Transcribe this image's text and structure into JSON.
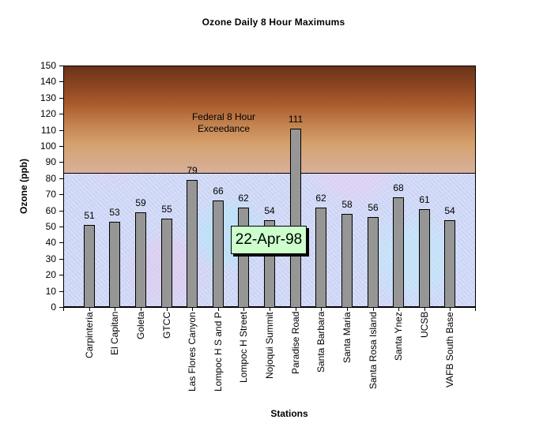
{
  "chart_data": {
    "type": "bar",
    "title": "Ozone Daily 8 Hour Maximums",
    "xlabel": "Stations",
    "ylabel": "Ozone (ppb)",
    "ylim": [
      0,
      150
    ],
    "yticks": [
      0,
      10,
      20,
      30,
      40,
      50,
      60,
      70,
      80,
      90,
      100,
      110,
      120,
      130,
      140,
      150
    ],
    "categories": [
      "Carpinteria",
      "El Capitan",
      "Goleta",
      "GTCC",
      "Las Flores Canyon",
      "Lompoc H S and P",
      "Lompoc H Street",
      "Nojoqui Summit",
      "Paradise Road",
      "Santa Barbara",
      "Santa Maria",
      "Santa Rosa Island",
      "Santa Ynez",
      "UCSB",
      "VAFB South Base"
    ],
    "values": [
      51,
      53,
      59,
      55,
      79,
      66,
      62,
      54,
      111,
      62,
      58,
      56,
      68,
      61,
      54
    ],
    "data_labels": true,
    "grid": false,
    "annotations": [
      {
        "type": "band",
        "label": "Federal 8 Hour Exceedance",
        "from": 84,
        "to": 150
      },
      {
        "type": "textbox",
        "label": "22-Apr-98"
      }
    ]
  },
  "colors": {
    "bar_fill": "#969696",
    "bar_border": "#000000",
    "exceedance_top": "#6a3318",
    "exceedance_bottom": "#d8b09a",
    "plot_bg": "#c9d4f5",
    "date_box_bg": "#ccffcc"
  },
  "band_label_lines": [
    "Federal 8 Hour",
    "Exceedance"
  ],
  "date_label": "22-Apr-98"
}
